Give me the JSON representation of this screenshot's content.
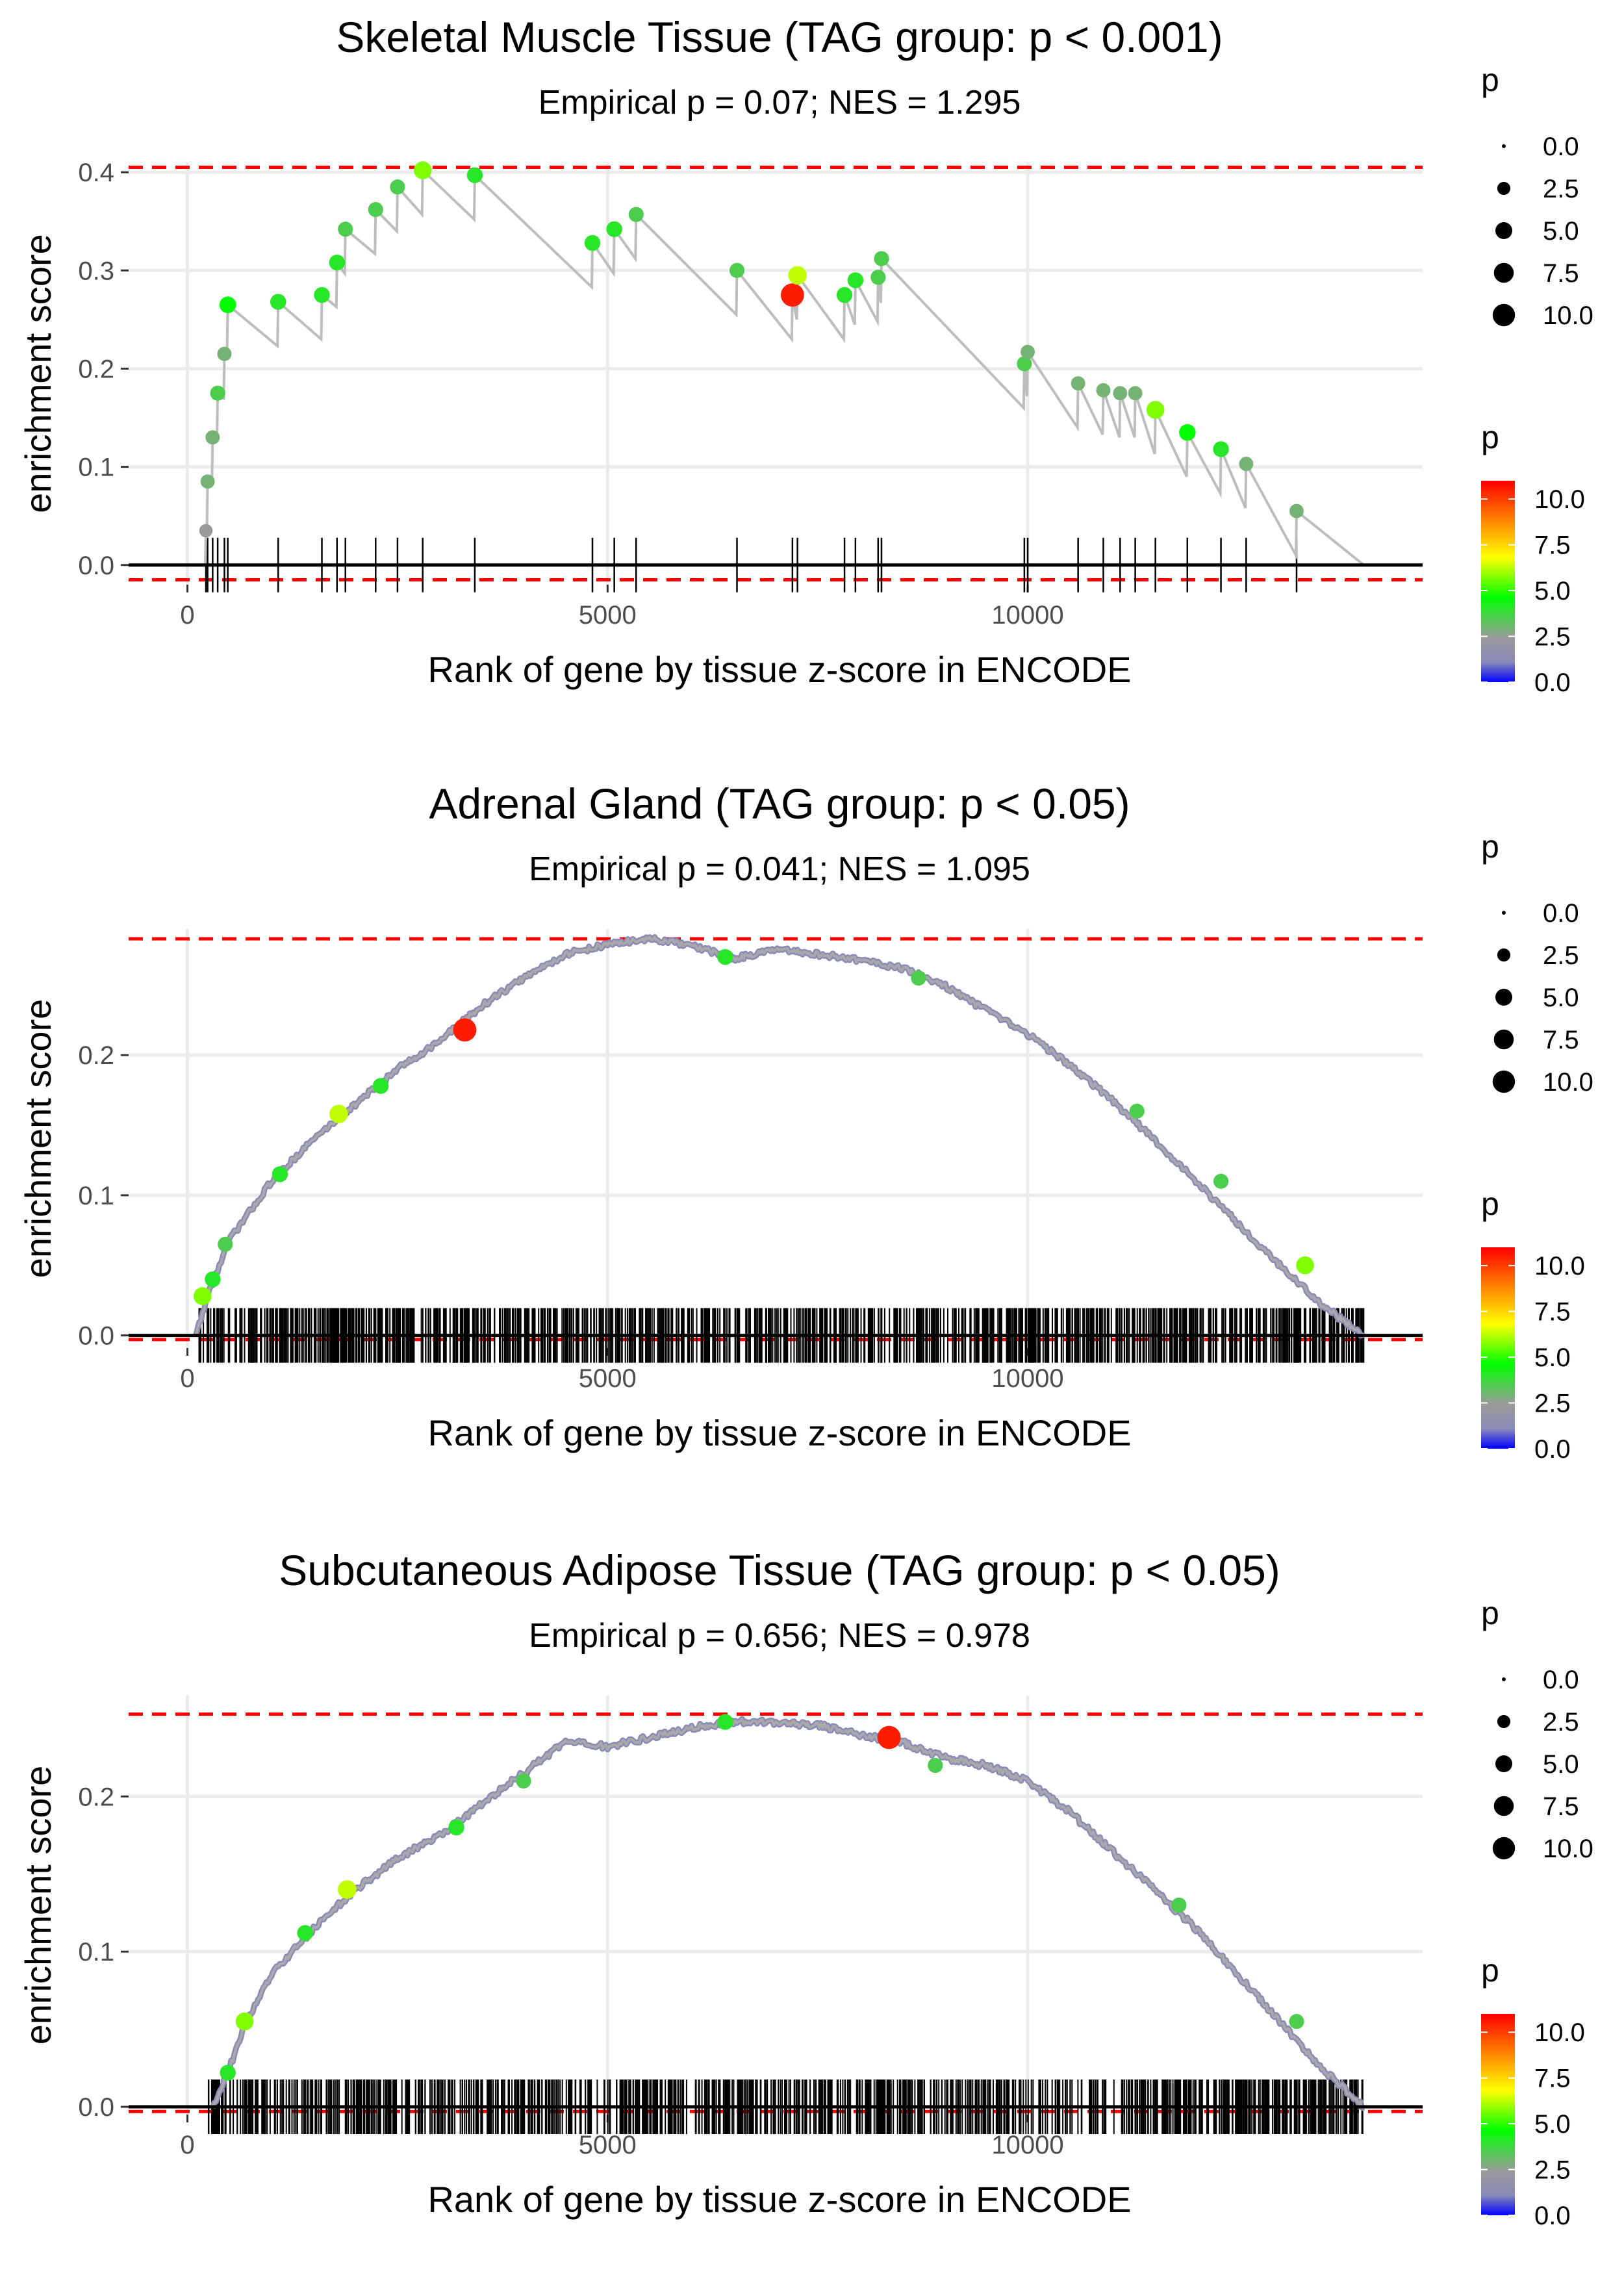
{
  "legend_labels": {
    "size_title": "p",
    "color_title": "p",
    "size_breaks": [
      0.0,
      2.5,
      5.0,
      7.5,
      10.0
    ],
    "size_break_labels": [
      "0.0",
      "2.5",
      "5.0",
      "7.5",
      "10.0"
    ],
    "color_break_labels": [
      "10.0",
      "7.5",
      "5.0",
      "2.5",
      "0.0"
    ],
    "color_stops": [
      "#0000ff",
      "#8a8ab8",
      "#9a9a9a",
      "#00ff00",
      "#ffff00",
      "#ff0000"
    ]
  },
  "colors": {
    "line": "#bdbdbd",
    "threshold": "#ff0000",
    "grid": "#ebebeb",
    "tick_marks": "#000000"
  },
  "chart_data": [
    {
      "type": "line",
      "title": "Skeletal Muscle Tissue (TAG group: p < 0.001)",
      "subtitle": "Empirical p = 0.07; NES = 1.295",
      "xlabel": "Rank of gene by tissue z-score in ENCODE",
      "ylabel": "enrichment score",
      "xlim": [
        -700,
        14700
      ],
      "ylim": [
        -0.02,
        0.41
      ],
      "xticks": [
        0,
        5000,
        10000
      ],
      "xtick_labels": [
        "0",
        "5000",
        "10000"
      ],
      "yticks": [
        0.0,
        0.1,
        0.2,
        0.3,
        0.4
      ],
      "ytick_labels": [
        "0.0",
        "0.1",
        "0.2",
        "0.3",
        "0.4"
      ],
      "thresholds": [
        0.405,
        -0.015
      ],
      "mode": "discrete",
      "hits": [
        {
          "x": 220,
          "y": 0.035,
          "p": 2.5
        },
        {
          "x": 240,
          "y": 0.085,
          "p": 3.0
        },
        {
          "x": 300,
          "y": 0.13,
          "p": 3.0
        },
        {
          "x": 360,
          "y": 0.175,
          "p": 3.5
        },
        {
          "x": 440,
          "y": 0.215,
          "p": 3.0
        },
        {
          "x": 480,
          "y": 0.265,
          "p": 4.5
        },
        {
          "x": 1080,
          "y": 0.268,
          "p": 4.0
        },
        {
          "x": 1600,
          "y": 0.275,
          "p": 4.0
        },
        {
          "x": 1780,
          "y": 0.308,
          "p": 4.0
        },
        {
          "x": 1880,
          "y": 0.342,
          "p": 3.5
        },
        {
          "x": 2240,
          "y": 0.362,
          "p": 3.5
        },
        {
          "x": 2500,
          "y": 0.385,
          "p": 3.5
        },
        {
          "x": 2800,
          "y": 0.402,
          "p": 5.5
        },
        {
          "x": 3420,
          "y": 0.397,
          "p": 4.0
        },
        {
          "x": 4820,
          "y": 0.328,
          "p": 4.0
        },
        {
          "x": 5080,
          "y": 0.342,
          "p": 4.0
        },
        {
          "x": 5340,
          "y": 0.357,
          "p": 3.5
        },
        {
          "x": 6540,
          "y": 0.3,
          "p": 3.5
        },
        {
          "x": 7200,
          "y": 0.275,
          "p": 10.5
        },
        {
          "x": 7260,
          "y": 0.295,
          "p": 6.0
        },
        {
          "x": 7820,
          "y": 0.275,
          "p": 4.0
        },
        {
          "x": 7950,
          "y": 0.29,
          "p": 4.0
        },
        {
          "x": 8220,
          "y": 0.293,
          "p": 3.5
        },
        {
          "x": 8260,
          "y": 0.312,
          "p": 3.5
        },
        {
          "x": 9960,
          "y": 0.205,
          "p": 3.5
        },
        {
          "x": 10000,
          "y": 0.217,
          "p": 3.0
        },
        {
          "x": 10600,
          "y": 0.185,
          "p": 3.0
        },
        {
          "x": 10900,
          "y": 0.178,
          "p": 3.0
        },
        {
          "x": 11100,
          "y": 0.175,
          "p": 3.0
        },
        {
          "x": 11280,
          "y": 0.175,
          "p": 3.0
        },
        {
          "x": 11520,
          "y": 0.158,
          "p": 5.5
        },
        {
          "x": 11900,
          "y": 0.135,
          "p": 4.5
        },
        {
          "x": 12300,
          "y": 0.118,
          "p": 4.0
        },
        {
          "x": 12600,
          "y": 0.103,
          "p": 3.0
        },
        {
          "x": 13200,
          "y": 0.055,
          "p": 3.0
        }
      ],
      "end": {
        "x": 14000,
        "y": 0.0
      }
    },
    {
      "type": "line",
      "title": "Adrenal Gland (TAG group: p < 0.05)",
      "subtitle": "Empirical p = 0.041; NES = 1.095",
      "xlabel": "Rank of gene by tissue z-score in ENCODE",
      "ylabel": "enrichment score",
      "xlim": [
        -700,
        14700
      ],
      "ylim": [
        -0.009,
        0.29
      ],
      "xticks": [
        0,
        5000,
        10000
      ],
      "xtick_labels": [
        "0",
        "5000",
        "10000"
      ],
      "yticks": [
        0.0,
        0.1,
        0.2
      ],
      "ytick_labels": [
        "0.0",
        "0.1",
        "0.2"
      ],
      "thresholds": [
        0.283,
        -0.003
      ],
      "mode": "continuous",
      "tick_count": 1000,
      "hit_range": [
        120,
        14000
      ],
      "curve_points": [
        [
          100,
          0.0
        ],
        [
          250,
          0.03
        ],
        [
          500,
          0.068
        ],
        [
          1000,
          0.11
        ],
        [
          1500,
          0.14
        ],
        [
          2000,
          0.165
        ],
        [
          2500,
          0.19
        ],
        [
          3000,
          0.21
        ],
        [
          3500,
          0.235
        ],
        [
          4000,
          0.255
        ],
        [
          4500,
          0.272
        ],
        [
          5000,
          0.279
        ],
        [
          5500,
          0.283
        ],
        [
          6000,
          0.278
        ],
        [
          6500,
          0.269
        ],
        [
          7000,
          0.275
        ],
        [
          7500,
          0.272
        ],
        [
          8000,
          0.268
        ],
        [
          8500,
          0.262
        ],
        [
          9000,
          0.25
        ],
        [
          9500,
          0.232
        ],
        [
          10000,
          0.215
        ],
        [
          10500,
          0.193
        ],
        [
          11000,
          0.168
        ],
        [
          11500,
          0.14
        ],
        [
          12000,
          0.11
        ],
        [
          12500,
          0.08
        ],
        [
          13000,
          0.05
        ],
        [
          13500,
          0.022
        ],
        [
          14000,
          0.0
        ]
      ],
      "hits": [
        {
          "x": 180,
          "y": 0.028,
          "p": 5.5
        },
        {
          "x": 300,
          "y": 0.04,
          "p": 4.0
        },
        {
          "x": 450,
          "y": 0.065,
          "p": 3.5
        },
        {
          "x": 1100,
          "y": 0.115,
          "p": 4.0
        },
        {
          "x": 1800,
          "y": 0.158,
          "p": 6.0
        },
        {
          "x": 2300,
          "y": 0.178,
          "p": 4.0
        },
        {
          "x": 3300,
          "y": 0.218,
          "p": 10.5
        },
        {
          "x": 6400,
          "y": 0.27,
          "p": 4.0
        },
        {
          "x": 8700,
          "y": 0.255,
          "p": 3.5
        },
        {
          "x": 11300,
          "y": 0.16,
          "p": 3.5
        },
        {
          "x": 12300,
          "y": 0.11,
          "p": 3.5
        },
        {
          "x": 13300,
          "y": 0.05,
          "p": 5.5
        }
      ]
    },
    {
      "type": "line",
      "title": "Subcutaneous Adipose Tissue (TAG group: p < 0.05)",
      "subtitle": "Empirical p = 0.656; NES = 0.978",
      "xlabel": "Rank of gene by tissue z-score in ENCODE",
      "ylabel": "enrichment score",
      "xlim": [
        -700,
        14700
      ],
      "ylim": [
        -0.005,
        0.265
      ],
      "xticks": [
        0,
        5000,
        10000
      ],
      "xtick_labels": [
        "0",
        "5000",
        "10000"
      ],
      "yticks": [
        0.0,
        0.1,
        0.2
      ],
      "ytick_labels": [
        "0.0",
        "0.1",
        "0.2"
      ],
      "thresholds": [
        0.253,
        -0.003
      ],
      "mode": "continuous",
      "tick_count": 900,
      "hit_range": [
        220,
        14000
      ],
      "curve_points": [
        [
          300,
          0.0
        ],
        [
          500,
          0.025
        ],
        [
          700,
          0.055
        ],
        [
          1000,
          0.085
        ],
        [
          1500,
          0.115
        ],
        [
          2000,
          0.14
        ],
        [
          2500,
          0.16
        ],
        [
          3000,
          0.175
        ],
        [
          3500,
          0.195
        ],
        [
          4000,
          0.215
        ],
        [
          4500,
          0.235
        ],
        [
          5000,
          0.232
        ],
        [
          5500,
          0.238
        ],
        [
          6000,
          0.244
        ],
        [
          6500,
          0.248
        ],
        [
          7000,
          0.248
        ],
        [
          7500,
          0.246
        ],
        [
          8000,
          0.24
        ],
        [
          8500,
          0.235
        ],
        [
          9000,
          0.225
        ],
        [
          9500,
          0.22
        ],
        [
          10000,
          0.21
        ],
        [
          10500,
          0.19
        ],
        [
          11000,
          0.165
        ],
        [
          11500,
          0.14
        ],
        [
          12000,
          0.115
        ],
        [
          12500,
          0.085
        ],
        [
          13000,
          0.055
        ],
        [
          13500,
          0.025
        ],
        [
          14000,
          0.0
        ]
      ],
      "hits": [
        {
          "x": 480,
          "y": 0.022,
          "p": 4.0
        },
        {
          "x": 680,
          "y": 0.055,
          "p": 5.5
        },
        {
          "x": 1400,
          "y": 0.112,
          "p": 4.0
        },
        {
          "x": 1900,
          "y": 0.14,
          "p": 6.0
        },
        {
          "x": 3200,
          "y": 0.18,
          "p": 4.0
        },
        {
          "x": 4000,
          "y": 0.21,
          "p": 3.5
        },
        {
          "x": 6400,
          "y": 0.248,
          "p": 4.0
        },
        {
          "x": 8350,
          "y": 0.238,
          "p": 10.5
        },
        {
          "x": 8900,
          "y": 0.22,
          "p": 3.5
        },
        {
          "x": 11800,
          "y": 0.13,
          "p": 3.5
        },
        {
          "x": 13200,
          "y": 0.055,
          "p": 3.5
        }
      ]
    }
  ]
}
